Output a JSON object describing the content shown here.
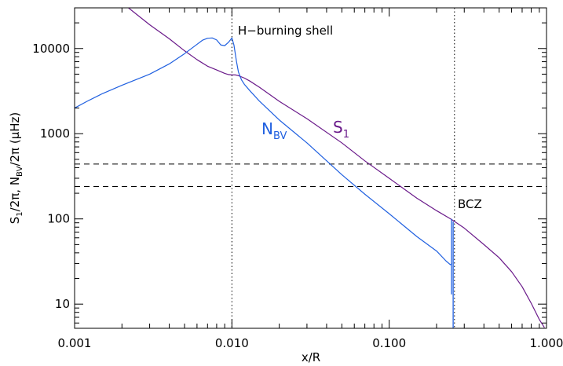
{
  "chart_data": {
    "type": "line",
    "xscale": "log",
    "yscale": "log",
    "xlim": [
      0.001,
      1.0
    ],
    "ylim": [
      5.2,
      30000
    ],
    "xlabel": "x/R",
    "ylabel_parts": [
      "S",
      "1",
      "/2π,   N",
      "BV",
      "/2π  (μHz)"
    ],
    "xticks": [
      {
        "value": 0.001,
        "label": "0.001"
      },
      {
        "value": 0.01,
        "label": "0.010"
      },
      {
        "value": 0.1,
        "label": "0.100"
      },
      {
        "value": 1.0,
        "label": "1.000"
      }
    ],
    "yticks": [
      {
        "value": 10,
        "label": "10"
      },
      {
        "value": 100,
        "label": "100"
      },
      {
        "value": 1000,
        "label": "1000"
      },
      {
        "value": 10000,
        "label": "10000"
      }
    ],
    "colors": {
      "N_BV": "#2060e0",
      "S_1": "#6a1a8a",
      "axis": "#000000"
    },
    "series": [
      {
        "key": "S_1",
        "name_base": "S",
        "name_sub": "1",
        "color": "#6a1a8a",
        "x": [
          0.0022,
          0.003,
          0.004,
          0.005,
          0.006,
          0.007,
          0.008,
          0.009,
          0.0095,
          0.01,
          0.0105,
          0.011,
          0.012,
          0.013,
          0.015,
          0.02,
          0.03,
          0.05,
          0.07,
          0.1,
          0.15,
          0.2,
          0.25,
          0.3,
          0.4,
          0.5,
          0.6,
          0.7,
          0.8,
          0.9,
          0.97
        ],
        "y": [
          30000,
          19000,
          13000,
          9400,
          7400,
          6200,
          5600,
          5100,
          4950,
          4900,
          4900,
          4800,
          4500,
          4150,
          3500,
          2400,
          1500,
          780,
          480,
          300,
          175,
          125,
          98,
          78,
          50,
          35,
          24,
          16,
          10.2,
          6.6,
          5.3
        ]
      },
      {
        "key": "N_BV",
        "name_base": "N",
        "name_sub": "BV",
        "color": "#2060e0",
        "x": [
          0.001,
          0.0012,
          0.0015,
          0.002,
          0.003,
          0.004,
          0.005,
          0.006,
          0.0065,
          0.007,
          0.0075,
          0.008,
          0.0085,
          0.009,
          0.0095,
          0.01,
          0.0103,
          0.0107,
          0.011,
          0.0115,
          0.012,
          0.013,
          0.015,
          0.02,
          0.03,
          0.05,
          0.07,
          0.1,
          0.15,
          0.2,
          0.23,
          0.245,
          0.25
        ],
        "y": [
          2000,
          2400,
          2950,
          3700,
          5000,
          6600,
          8700,
          11200,
          12500,
          13200,
          13300,
          12600,
          11000,
          10800,
          11800,
          13300,
          11000,
          7000,
          5300,
          4300,
          3800,
          3200,
          2400,
          1450,
          780,
          330,
          195,
          115,
          62,
          42,
          32,
          29,
          30
        ]
      }
    ],
    "spikes": [
      {
        "x": 0.249,
        "y_top": 100,
        "y_bottom": 13
      },
      {
        "x": 0.255,
        "y_top": 93,
        "y_bottom": 5.2
      }
    ],
    "hlines": [
      440,
      240
    ],
    "vlines": [
      0.01,
      0.26
    ],
    "annotations": {
      "h_burning_shell": "H−burning shell",
      "bcz": "BCZ"
    }
  }
}
